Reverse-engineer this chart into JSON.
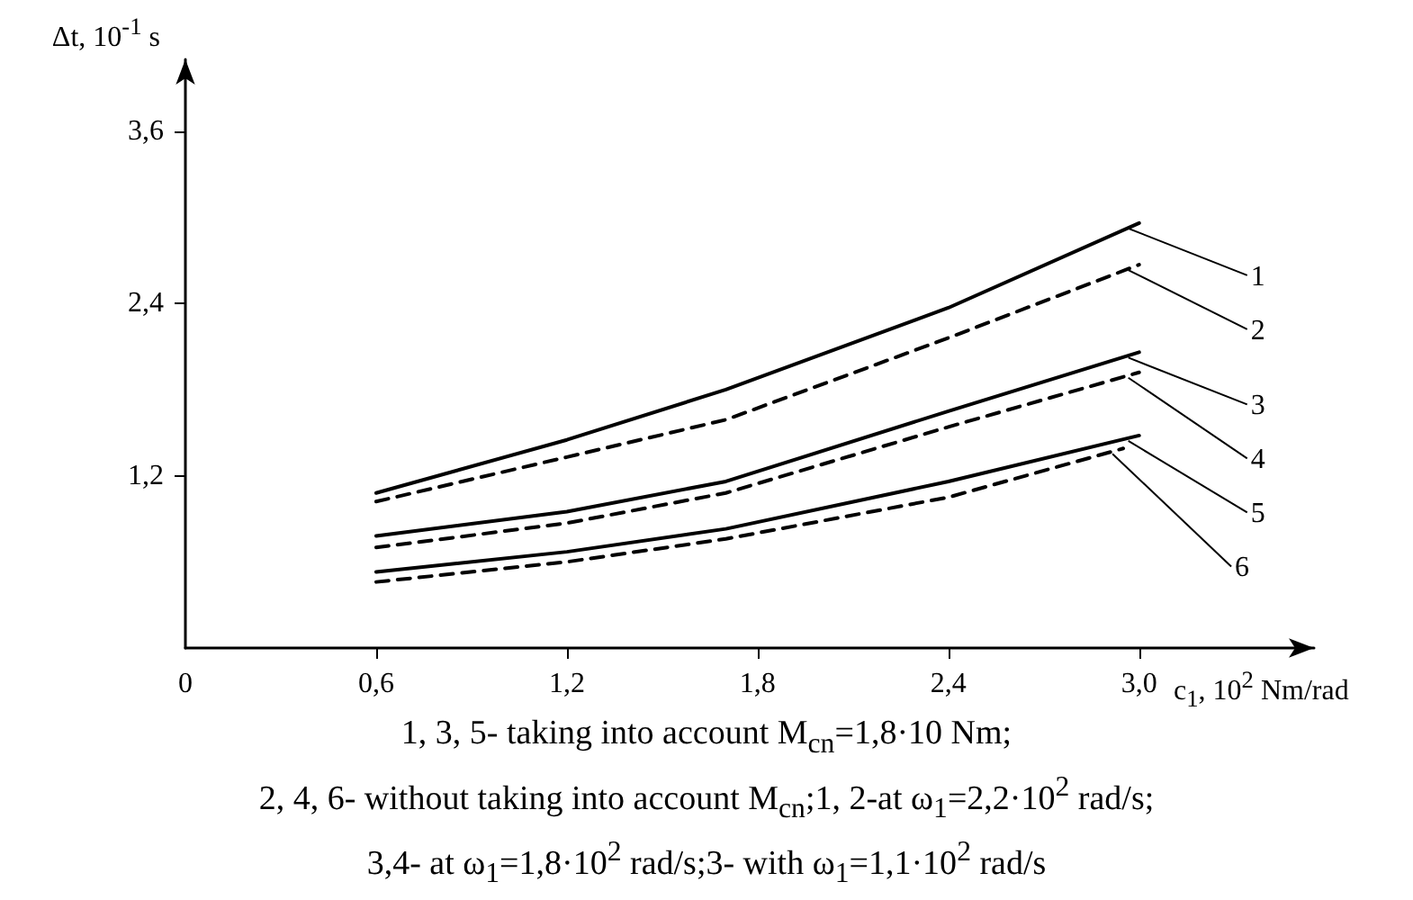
{
  "chart_data": {
    "type": "line",
    "xlabel": "c$_{1}$, 10$^{2}$ Nm/rad",
    "ylabel": "Δt, 10$^{-1}$ s",
    "x": [
      0.6,
      1.2,
      1.7,
      2.4,
      3.0
    ],
    "xlim": [
      0,
      3.55
    ],
    "xticks": [
      {
        "value": 0,
        "label": "0"
      },
      {
        "value": 0.6,
        "label": "0,6"
      },
      {
        "value": 1.2,
        "label": "1,2"
      },
      {
        "value": 1.8,
        "label": "1,8"
      },
      {
        "value": 2.4,
        "label": "2,4"
      },
      {
        "value": 3.0,
        "label": "3,0"
      }
    ],
    "ylim": [
      0,
      4.1
    ],
    "yticks": [
      {
        "value": 1.2,
        "label": "1,2"
      },
      {
        "value": 2.4,
        "label": "2,4"
      },
      {
        "value": 3.6,
        "label": "3,6"
      }
    ],
    "marker": "none",
    "legend": "right",
    "series": [
      {
        "name": "1",
        "color": "#000000",
        "line_style": "solid",
        "values": [
          1.08,
          1.45,
          1.8,
          2.37,
          2.96
        ]
      },
      {
        "name": "2",
        "color": "#000000",
        "line_style": "dashed",
        "values": [
          1.02,
          1.33,
          1.59,
          2.16,
          2.67
        ]
      },
      {
        "name": "3",
        "color": "#000000",
        "line_style": "solid",
        "values": [
          0.78,
          0.95,
          1.16,
          1.65,
          2.06
        ]
      },
      {
        "name": "4",
        "color": "#000000",
        "line_style": "dashed",
        "values": [
          0.7,
          0.87,
          1.08,
          1.54,
          1.92
        ]
      },
      {
        "name": "5",
        "color": "#000000",
        "line_style": "solid",
        "values": [
          0.53,
          0.67,
          0.83,
          1.16,
          1.48
        ]
      },
      {
        "name": "6",
        "color": "#000000",
        "line_style": "dashed",
        "x": [
          0.6,
          1.2,
          1.7,
          2.4,
          2.95
        ],
        "values": [
          0.46,
          0.6,
          0.76,
          1.05,
          1.39
        ]
      }
    ],
    "annotations": [
      "1, 3, 5- taking into account M$_{cn}$=1,8·10 Nm;",
      "2, 4, 6- without taking into account M$_{cn}$;1, 2-at ω$_{1}$=2,2·10$^{2}$ rad/s;",
      "3,4- at ω$_{1}$=1,8·10$^{2}$ rad/s;3- with ω$_{1}$=1,1·10$^{2}$ rad/s"
    ]
  }
}
